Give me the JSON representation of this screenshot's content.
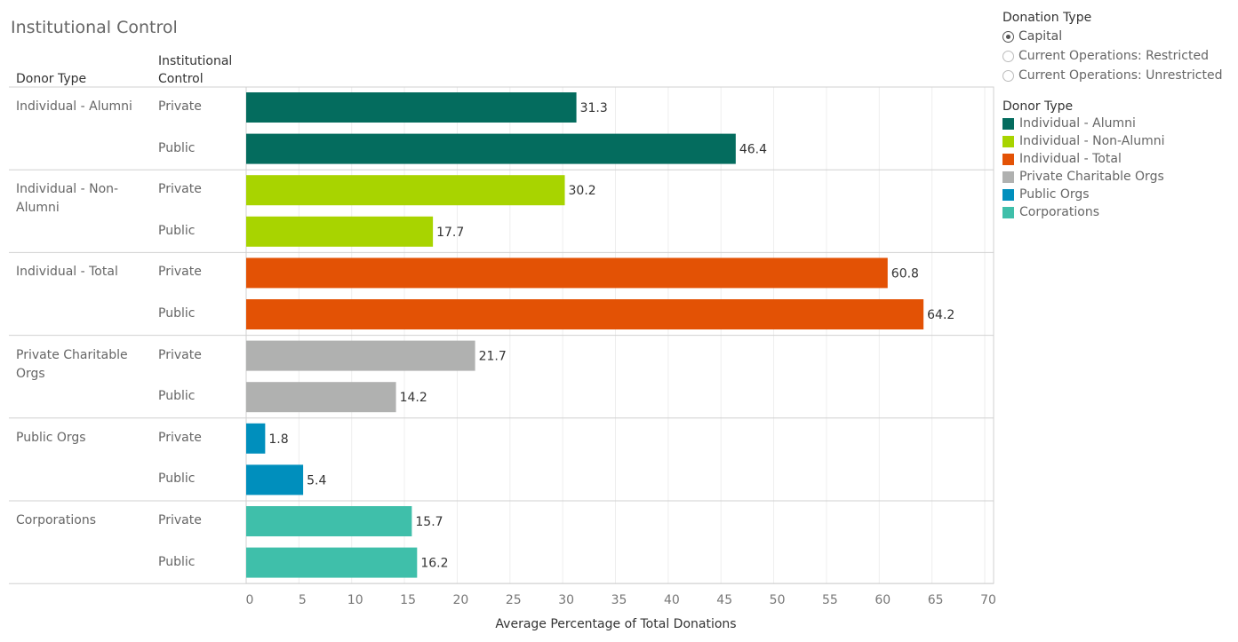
{
  "title": "Institutional Control",
  "row_headers": {
    "donor_type": "Donor Type",
    "institutional_control": "Institutional Control"
  },
  "filter": {
    "title": "Donation Type",
    "options": [
      {
        "label": "Capital",
        "selected": true
      },
      {
        "label": "Current Operations: Restricted",
        "selected": false
      },
      {
        "label": "Current Operations: Unrestricted",
        "selected": false
      }
    ]
  },
  "legend": {
    "title": "Donor Type",
    "items": [
      {
        "label": "Individual - Alumni",
        "color": "#046c5e"
      },
      {
        "label": "Individual - Non-Alumni",
        "color": "#a8d400"
      },
      {
        "label": "Individual - Total",
        "color": "#e35205"
      },
      {
        "label": "Private Charitable Orgs",
        "color": "#b0b1b0"
      },
      {
        "label": "Public Orgs",
        "color": "#008fbd"
      },
      {
        "label": "Corporations",
        "color": "#3fbfaa"
      }
    ]
  },
  "chart_data": {
    "type": "bar",
    "orientation": "horizontal",
    "xlabel": "Average Percentage of Total Donations",
    "xlim": [
      0,
      70
    ],
    "xticks": [
      0,
      5,
      10,
      15,
      20,
      25,
      30,
      35,
      40,
      45,
      50,
      55,
      60,
      65,
      70
    ],
    "grid": true,
    "groups": [
      {
        "donor_type": "Individual - Alumni",
        "bars": [
          {
            "control": "Private",
            "value": 31.3
          },
          {
            "control": "Public",
            "value": 46.4
          }
        ]
      },
      {
        "donor_type": "Individual - Non-Alumni",
        "bars": [
          {
            "control": "Private",
            "value": 30.2
          },
          {
            "control": "Public",
            "value": 17.7
          }
        ]
      },
      {
        "donor_type": "Individual - Total",
        "bars": [
          {
            "control": "Private",
            "value": 60.8
          },
          {
            "control": "Public",
            "value": 64.2
          }
        ]
      },
      {
        "donor_type": "Private Charitable Orgs",
        "bars": [
          {
            "control": "Private",
            "value": 21.7
          },
          {
            "control": "Public",
            "value": 14.2
          }
        ]
      },
      {
        "donor_type": "Public Orgs",
        "bars": [
          {
            "control": "Private",
            "value": 1.8
          },
          {
            "control": "Public",
            "value": 5.4
          }
        ]
      },
      {
        "donor_type": "Corporations",
        "bars": [
          {
            "control": "Private",
            "value": 15.7
          },
          {
            "control": "Public",
            "value": 16.2
          }
        ]
      }
    ]
  }
}
